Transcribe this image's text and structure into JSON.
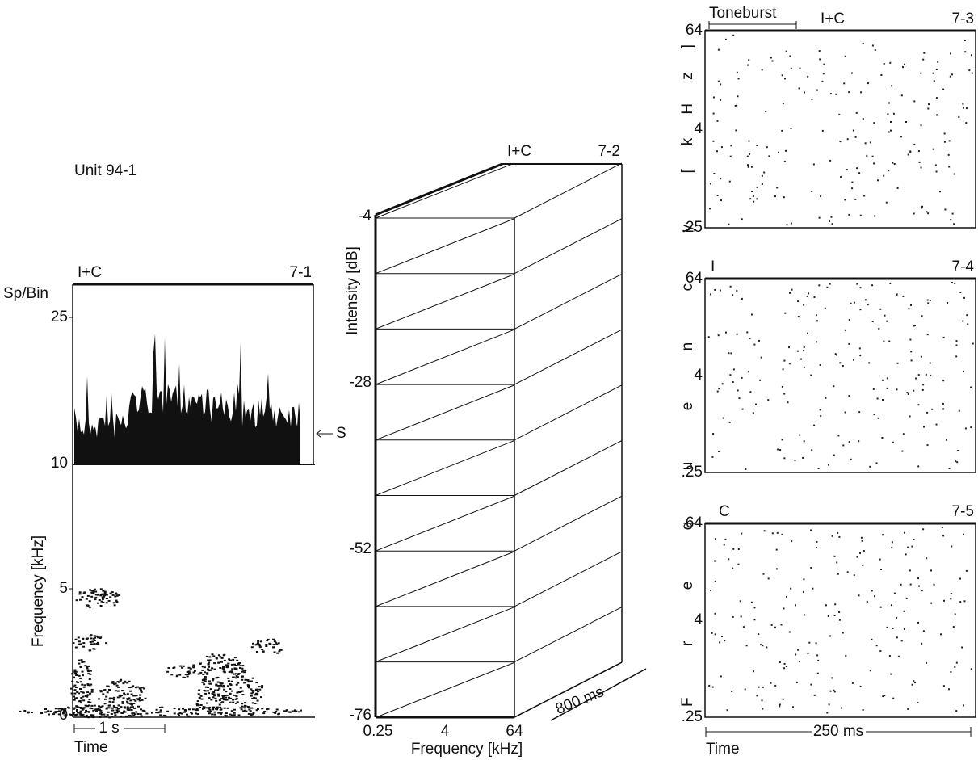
{
  "left_panel": {
    "unit": "Unit 94-1",
    "condition": "I+C",
    "id": "7-1",
    "y_label_top": "Sp/Bin",
    "yticks_top": [
      "25",
      "10"
    ],
    "marker": "S",
    "y_label_bottom": "Frequency  [kHz]",
    "yticks_bottom": [
      "5",
      "0"
    ],
    "scale_bar": "1 s",
    "x_label": "Time"
  },
  "middle_panel": {
    "condition": "I+C",
    "id": "7-2",
    "y_label": "Intensity  [dB]",
    "yticks": [
      "-4",
      "-28",
      "-52",
      "-76"
    ],
    "xticks": [
      "0.25",
      "4",
      "64"
    ],
    "x_label": "Frequency [kHz]",
    "depth_label": "800 ms"
  },
  "right_panels": {
    "y_label": "F  r  e  q  u  e  n  c  y   [kHz]",
    "stimulus": "Toneburst",
    "x_label": "Time",
    "scale_bar": "250 ms",
    "panels": [
      {
        "condition": "I+C",
        "id": "7-3",
        "yticks": [
          "64",
          "4",
          ".25"
        ]
      },
      {
        "condition": "I",
        "id": "7-4",
        "yticks": [
          "64",
          "4",
          ".25"
        ]
      },
      {
        "condition": "C",
        "id": "7-5",
        "yticks": [
          "64",
          "4",
          ".25"
        ]
      }
    ]
  }
}
